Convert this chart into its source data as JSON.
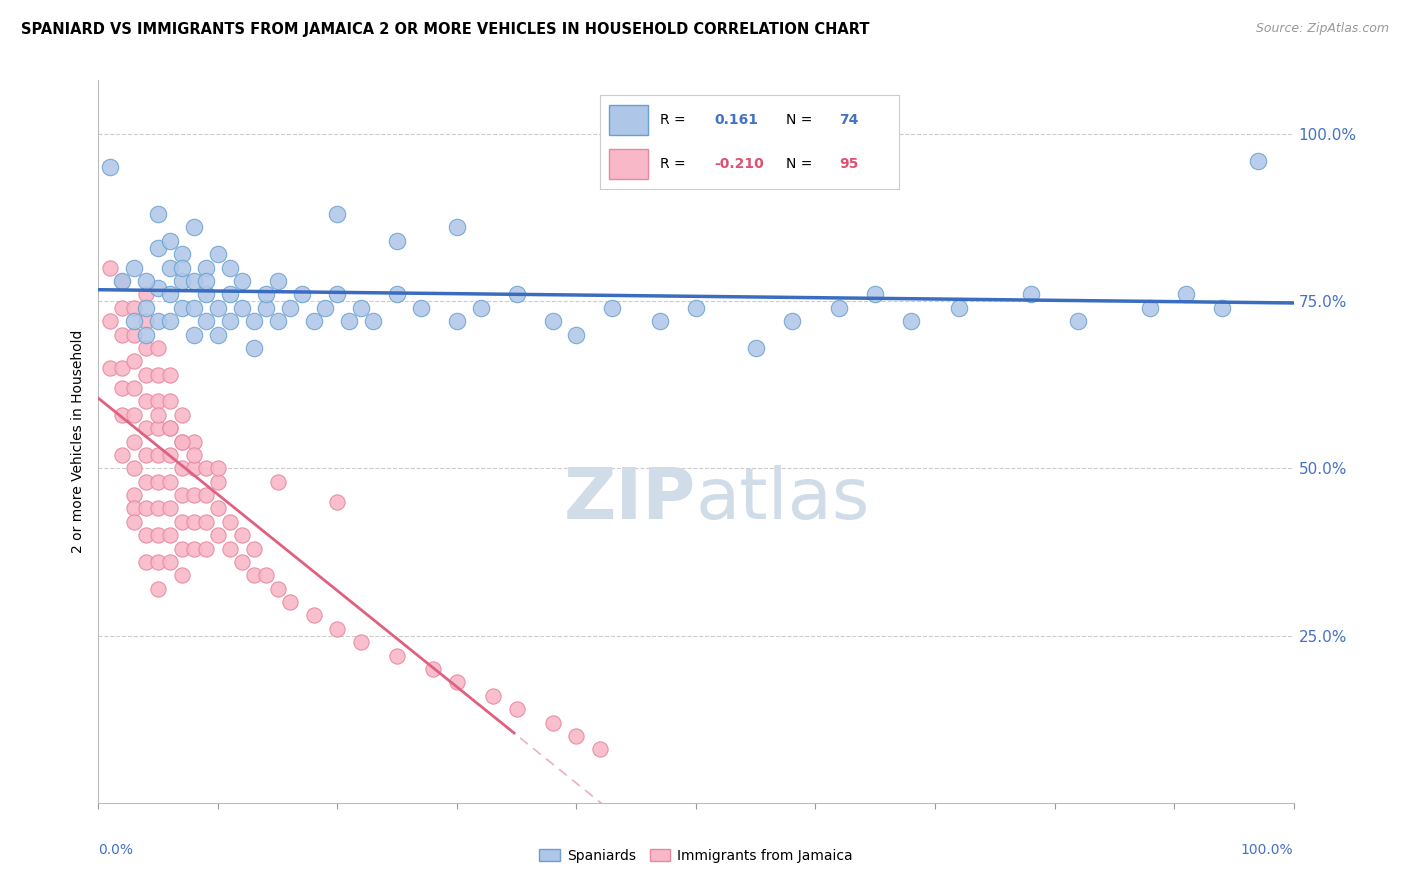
{
  "title": "SPANIARD VS IMMIGRANTS FROM JAMAICA 2 OR MORE VEHICLES IN HOUSEHOLD CORRELATION CHART",
  "source": "Source: ZipAtlas.com",
  "ylabel": "2 or more Vehicles in Household",
  "legend_blue_r": "0.161",
  "legend_blue_n": "74",
  "legend_pink_r": "-0.210",
  "legend_pink_n": "95",
  "blue_scatter_color": "#aec6e8",
  "blue_edge_color": "#6aa0d0",
  "pink_scatter_color": "#f9b8c8",
  "pink_edge_color": "#e888a0",
  "blue_line_color": "#3a6dbf",
  "pink_line_color": "#e06080",
  "watermark_color": "#d0dce8",
  "blue_x": [
    0.01,
    0.02,
    0.03,
    0.03,
    0.04,
    0.04,
    0.05,
    0.05,
    0.05,
    0.06,
    0.06,
    0.06,
    0.07,
    0.07,
    0.07,
    0.08,
    0.08,
    0.08,
    0.09,
    0.09,
    0.09,
    0.1,
    0.1,
    0.11,
    0.11,
    0.12,
    0.12,
    0.13,
    0.13,
    0.14,
    0.15,
    0.15,
    0.16,
    0.17,
    0.18,
    0.19,
    0.2,
    0.21,
    0.22,
    0.23,
    0.25,
    0.27,
    0.3,
    0.32,
    0.35,
    0.38,
    0.4,
    0.43,
    0.47,
    0.5,
    0.55,
    0.58,
    0.62,
    0.65,
    0.68,
    0.72,
    0.78,
    0.82,
    0.88,
    0.91,
    0.94,
    0.97,
    0.3,
    0.2,
    0.25,
    0.1,
    0.08,
    0.06,
    0.05,
    0.04,
    0.07,
    0.09,
    0.11,
    0.14
  ],
  "blue_y": [
    0.95,
    0.78,
    0.72,
    0.8,
    0.74,
    0.7,
    0.83,
    0.77,
    0.72,
    0.8,
    0.76,
    0.72,
    0.82,
    0.78,
    0.74,
    0.78,
    0.74,
    0.7,
    0.8,
    0.76,
    0.72,
    0.74,
    0.7,
    0.76,
    0.72,
    0.78,
    0.74,
    0.72,
    0.68,
    0.74,
    0.78,
    0.72,
    0.74,
    0.76,
    0.72,
    0.74,
    0.76,
    0.72,
    0.74,
    0.72,
    0.76,
    0.74,
    0.72,
    0.74,
    0.76,
    0.72,
    0.7,
    0.74,
    0.72,
    0.74,
    0.68,
    0.72,
    0.74,
    0.76,
    0.72,
    0.74,
    0.76,
    0.72,
    0.74,
    0.76,
    0.74,
    0.96,
    0.86,
    0.88,
    0.84,
    0.82,
    0.86,
    0.84,
    0.88,
    0.78,
    0.8,
    0.78,
    0.8,
    0.76
  ],
  "pink_x": [
    0.01,
    0.01,
    0.01,
    0.02,
    0.02,
    0.02,
    0.02,
    0.02,
    0.02,
    0.02,
    0.03,
    0.03,
    0.03,
    0.03,
    0.03,
    0.03,
    0.03,
    0.03,
    0.03,
    0.03,
    0.04,
    0.04,
    0.04,
    0.04,
    0.04,
    0.04,
    0.04,
    0.04,
    0.04,
    0.04,
    0.05,
    0.05,
    0.05,
    0.05,
    0.05,
    0.05,
    0.05,
    0.05,
    0.05,
    0.05,
    0.06,
    0.06,
    0.06,
    0.06,
    0.06,
    0.06,
    0.06,
    0.06,
    0.07,
    0.07,
    0.07,
    0.07,
    0.07,
    0.07,
    0.07,
    0.08,
    0.08,
    0.08,
    0.08,
    0.08,
    0.09,
    0.09,
    0.09,
    0.09,
    0.1,
    0.1,
    0.1,
    0.11,
    0.11,
    0.12,
    0.12,
    0.13,
    0.13,
    0.14,
    0.15,
    0.16,
    0.18,
    0.2,
    0.22,
    0.25,
    0.28,
    0.3,
    0.33,
    0.35,
    0.38,
    0.4,
    0.42,
    0.2,
    0.15,
    0.1,
    0.08,
    0.07,
    0.06,
    0.05,
    0.04
  ],
  "pink_y": [
    0.8,
    0.72,
    0.65,
    0.78,
    0.74,
    0.7,
    0.65,
    0.62,
    0.58,
    0.52,
    0.74,
    0.7,
    0.66,
    0.62,
    0.58,
    0.54,
    0.5,
    0.46,
    0.44,
    0.42,
    0.72,
    0.68,
    0.64,
    0.6,
    0.56,
    0.52,
    0.48,
    0.44,
    0.4,
    0.36,
    0.68,
    0.64,
    0.6,
    0.56,
    0.52,
    0.48,
    0.44,
    0.4,
    0.36,
    0.32,
    0.64,
    0.6,
    0.56,
    0.52,
    0.48,
    0.44,
    0.4,
    0.36,
    0.58,
    0.54,
    0.5,
    0.46,
    0.42,
    0.38,
    0.34,
    0.54,
    0.5,
    0.46,
    0.42,
    0.38,
    0.5,
    0.46,
    0.42,
    0.38,
    0.48,
    0.44,
    0.4,
    0.42,
    0.38,
    0.4,
    0.36,
    0.38,
    0.34,
    0.34,
    0.32,
    0.3,
    0.28,
    0.26,
    0.24,
    0.22,
    0.2,
    0.18,
    0.16,
    0.14,
    0.12,
    0.1,
    0.08,
    0.45,
    0.48,
    0.5,
    0.52,
    0.54,
    0.56,
    0.58,
    0.76
  ]
}
